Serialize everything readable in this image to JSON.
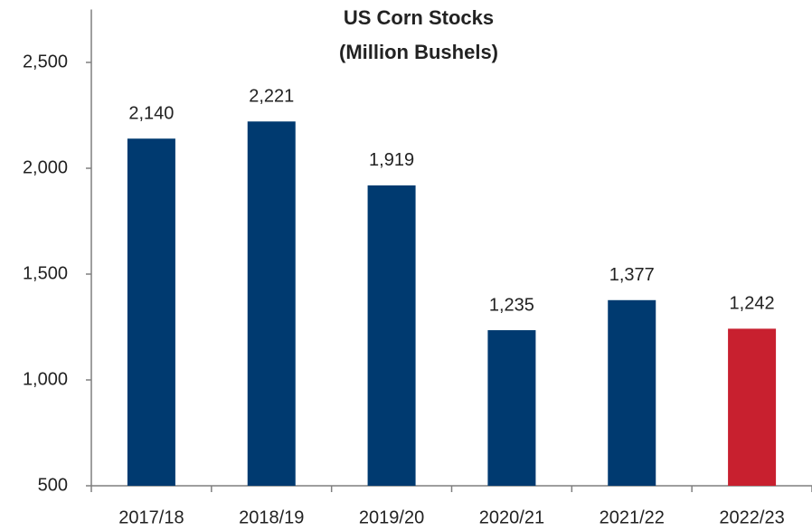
{
  "chart_data": {
    "type": "bar",
    "title": "US Corn Stocks",
    "subtitle": "(Million Bushels)",
    "categories": [
      "2017/18",
      "2018/19",
      "2019/20",
      "2020/21",
      "2021/22",
      "2022/23"
    ],
    "values": [
      2140,
      2221,
      1919,
      1235,
      1377,
      1242
    ],
    "value_labels": [
      "2,140",
      "2,221",
      "1,919",
      "1,235",
      "1,377",
      "1,242"
    ],
    "colors": [
      "#003a70",
      "#003a70",
      "#003a70",
      "#003a70",
      "#003a70",
      "#c8202f"
    ],
    "ylim": [
      500,
      2750
    ],
    "yticks": [
      500,
      {
        "value": 1000,
        "label": "1,000"
      },
      {
        "value": 1500,
        "label": "1,500"
      },
      {
        "value": 2000,
        "label": "2,000"
      },
      {
        "value": 2500,
        "label": "2,500"
      }
    ],
    "grid": false
  }
}
